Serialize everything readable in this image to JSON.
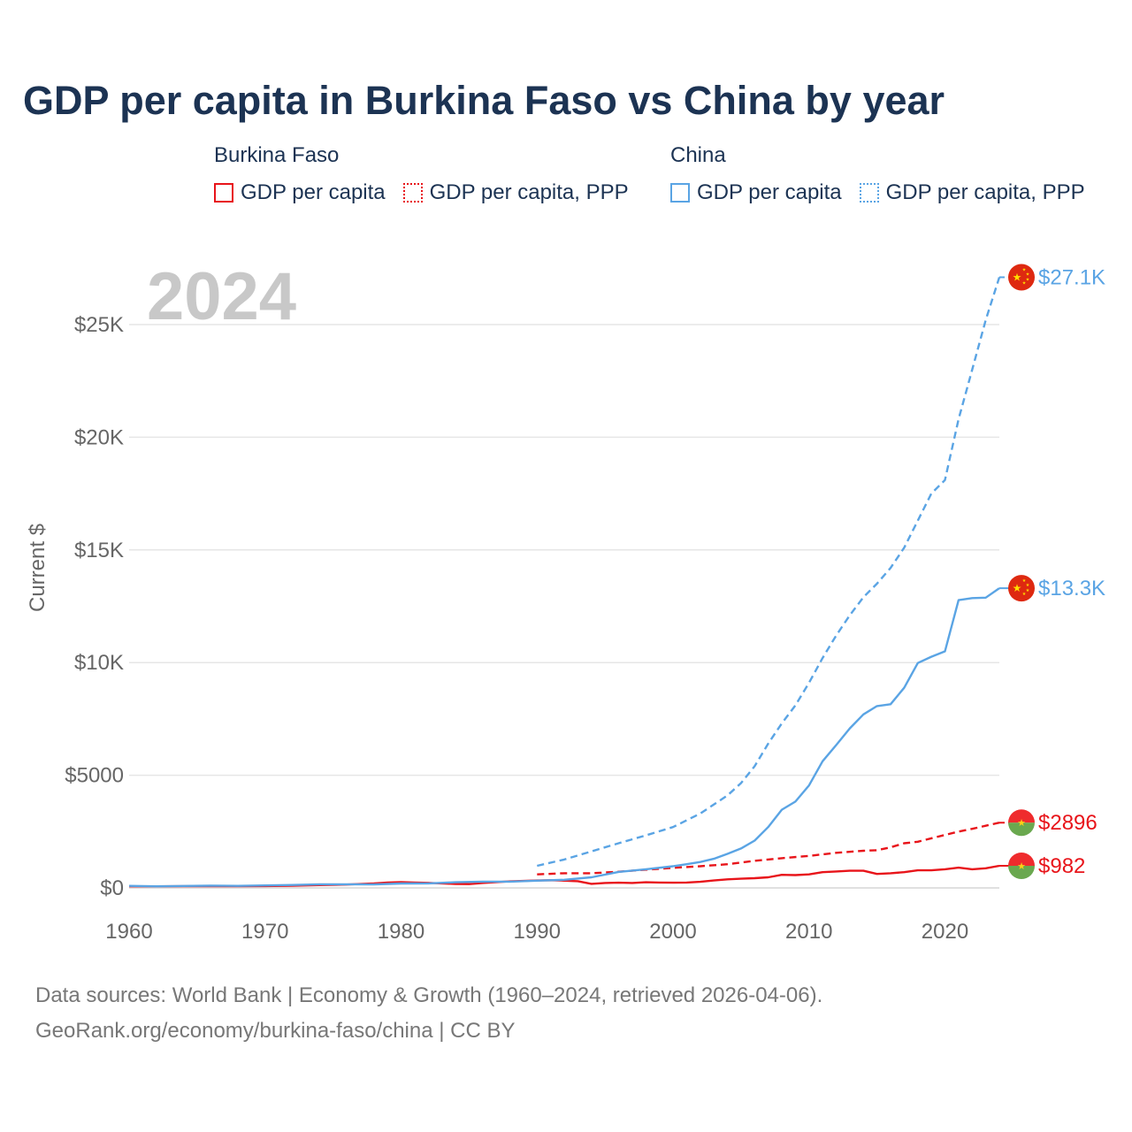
{
  "chart_data": {
    "type": "line",
    "title": "GDP per capita in Burkina Faso vs China by year",
    "year_label": "2024",
    "ylabel": "Current $",
    "xlabel": "",
    "xlim": [
      1960,
      2024
    ],
    "ylim": [
      0,
      27500
    ],
    "y_ticks": [
      {
        "value": 0,
        "label": "$0"
      },
      {
        "value": 5000,
        "label": "$5000"
      },
      {
        "value": 10000,
        "label": "$10K"
      },
      {
        "value": 15000,
        "label": "$15K"
      },
      {
        "value": 20000,
        "label": "$20K"
      },
      {
        "value": 25000,
        "label": "$25K"
      }
    ],
    "x_ticks": [
      {
        "value": 1960,
        "label": "1960"
      },
      {
        "value": 1970,
        "label": "1970"
      },
      {
        "value": 1980,
        "label": "1980"
      },
      {
        "value": 1990,
        "label": "1990"
      },
      {
        "value": 2000,
        "label": "2000"
      },
      {
        "value": 2010,
        "label": "2010"
      },
      {
        "value": 2020,
        "label": "2020"
      }
    ],
    "grid": true,
    "legend": {
      "placement": "top",
      "groups": [
        {
          "name": "Burkina Faso",
          "items": [
            "GDP per capita",
            "GDP per capita, PPP"
          ]
        },
        {
          "name": "China",
          "items": [
            "GDP per capita",
            "GDP per capita, PPP"
          ]
        }
      ]
    },
    "series": [
      {
        "name": "Burkina Faso GDP per capita",
        "color": "#e8141a",
        "dash": "solid",
        "end_label": "$982",
        "flag": "burkina-faso",
        "points": [
          [
            1960,
            70
          ],
          [
            1962,
            72
          ],
          [
            1964,
            74
          ],
          [
            1966,
            78
          ],
          [
            1968,
            80
          ],
          [
            1970,
            84
          ],
          [
            1972,
            98
          ],
          [
            1974,
            125
          ],
          [
            1976,
            150
          ],
          [
            1978,
            200
          ],
          [
            1979,
            240
          ],
          [
            1980,
            260
          ],
          [
            1981,
            240
          ],
          [
            1982,
            225
          ],
          [
            1983,
            200
          ],
          [
            1984,
            175
          ],
          [
            1985,
            170
          ],
          [
            1986,
            220
          ],
          [
            1988,
            290
          ],
          [
            1990,
            330
          ],
          [
            1991,
            340
          ],
          [
            1992,
            320
          ],
          [
            1993,
            300
          ],
          [
            1994,
            180
          ],
          [
            1995,
            220
          ],
          [
            1996,
            230
          ],
          [
            1997,
            220
          ],
          [
            1998,
            250
          ],
          [
            1999,
            240
          ],
          [
            2000,
            230
          ],
          [
            2001,
            240
          ],
          [
            2002,
            270
          ],
          [
            2003,
            330
          ],
          [
            2004,
            380
          ],
          [
            2005,
            410
          ],
          [
            2006,
            430
          ],
          [
            2007,
            470
          ],
          [
            2008,
            580
          ],
          [
            2009,
            570
          ],
          [
            2010,
            600
          ],
          [
            2011,
            700
          ],
          [
            2012,
            730
          ],
          [
            2013,
            760
          ],
          [
            2014,
            760
          ],
          [
            2015,
            620
          ],
          [
            2016,
            650
          ],
          [
            2017,
            700
          ],
          [
            2018,
            780
          ],
          [
            2019,
            780
          ],
          [
            2020,
            830
          ],
          [
            2021,
            900
          ],
          [
            2022,
            830
          ],
          [
            2023,
            870
          ],
          [
            2024,
            982
          ]
        ]
      },
      {
        "name": "Burkina Faso GDP per capita, PPP",
        "color": "#e8141a",
        "dash": "dashed",
        "end_label": "$2896",
        "flag": "burkina-faso",
        "points": [
          [
            1990,
            600
          ],
          [
            1992,
            650
          ],
          [
            1994,
            650
          ],
          [
            1996,
            720
          ],
          [
            1998,
            810
          ],
          [
            2000,
            890
          ],
          [
            2002,
            960
          ],
          [
            2004,
            1050
          ],
          [
            2006,
            1200
          ],
          [
            2008,
            1320
          ],
          [
            2010,
            1420
          ],
          [
            2012,
            1560
          ],
          [
            2014,
            1650
          ],
          [
            2015,
            1670
          ],
          [
            2016,
            1800
          ],
          [
            2017,
            1980
          ],
          [
            2018,
            2050
          ],
          [
            2019,
            2200
          ],
          [
            2020,
            2350
          ],
          [
            2021,
            2500
          ],
          [
            2022,
            2620
          ],
          [
            2023,
            2760
          ],
          [
            2024,
            2896
          ]
        ]
      },
      {
        "name": "China GDP per capita",
        "color": "#5aa4e4",
        "dash": "solid",
        "end_label": "$13.3K",
        "flag": "china",
        "points": [
          [
            1960,
            90
          ],
          [
            1962,
            70
          ],
          [
            1964,
            85
          ],
          [
            1966,
            100
          ],
          [
            1968,
            90
          ],
          [
            1970,
            110
          ],
          [
            1972,
            130
          ],
          [
            1974,
            160
          ],
          [
            1976,
            160
          ],
          [
            1978,
            155
          ],
          [
            1980,
            195
          ],
          [
            1982,
            200
          ],
          [
            1984,
            250
          ],
          [
            1986,
            280
          ],
          [
            1988,
            280
          ],
          [
            1990,
            320
          ],
          [
            1992,
            360
          ],
          [
            1994,
            470
          ],
          [
            1996,
            710
          ],
          [
            1998,
            830
          ],
          [
            2000,
            960
          ],
          [
            2001,
            1050
          ],
          [
            2002,
            1150
          ],
          [
            2003,
            1290
          ],
          [
            2004,
            1510
          ],
          [
            2005,
            1750
          ],
          [
            2006,
            2100
          ],
          [
            2007,
            2700
          ],
          [
            2008,
            3470
          ],
          [
            2009,
            3830
          ],
          [
            2010,
            4550
          ],
          [
            2011,
            5620
          ],
          [
            2012,
            6340
          ],
          [
            2013,
            7080
          ],
          [
            2014,
            7700
          ],
          [
            2015,
            8070
          ],
          [
            2016,
            8150
          ],
          [
            2017,
            8880
          ],
          [
            2018,
            9980
          ],
          [
            2019,
            10260
          ],
          [
            2020,
            10500
          ],
          [
            2021,
            12770
          ],
          [
            2022,
            12860
          ],
          [
            2023,
            12880
          ],
          [
            2024,
            13300
          ]
        ]
      },
      {
        "name": "China GDP per capita, PPP",
        "color": "#5aa4e4",
        "dash": "dashed",
        "end_label": "$27.1K",
        "flag": "china",
        "points": [
          [
            1990,
            980
          ],
          [
            1992,
            1260
          ],
          [
            1994,
            1620
          ],
          [
            1996,
            1980
          ],
          [
            1998,
            2330
          ],
          [
            2000,
            2700
          ],
          [
            2002,
            3300
          ],
          [
            2004,
            4100
          ],
          [
            2005,
            4650
          ],
          [
            2006,
            5400
          ],
          [
            2007,
            6400
          ],
          [
            2008,
            7300
          ],
          [
            2009,
            8100
          ],
          [
            2010,
            9100
          ],
          [
            2011,
            10200
          ],
          [
            2012,
            11200
          ],
          [
            2013,
            12100
          ],
          [
            2014,
            12900
          ],
          [
            2015,
            13500
          ],
          [
            2016,
            14200
          ],
          [
            2017,
            15100
          ],
          [
            2018,
            16300
          ],
          [
            2019,
            17500
          ],
          [
            2020,
            18100
          ],
          [
            2021,
            20800
          ],
          [
            2022,
            23000
          ],
          [
            2023,
            25200
          ],
          [
            2024,
            27100
          ]
        ]
      }
    ]
  },
  "source": {
    "line1": "Data sources: World Bank | Economy & Growth (1960–2024, retrieved 2026-04-06).",
    "line2": "GeoRank.org/economy/burkina-faso/china | CC BY"
  }
}
